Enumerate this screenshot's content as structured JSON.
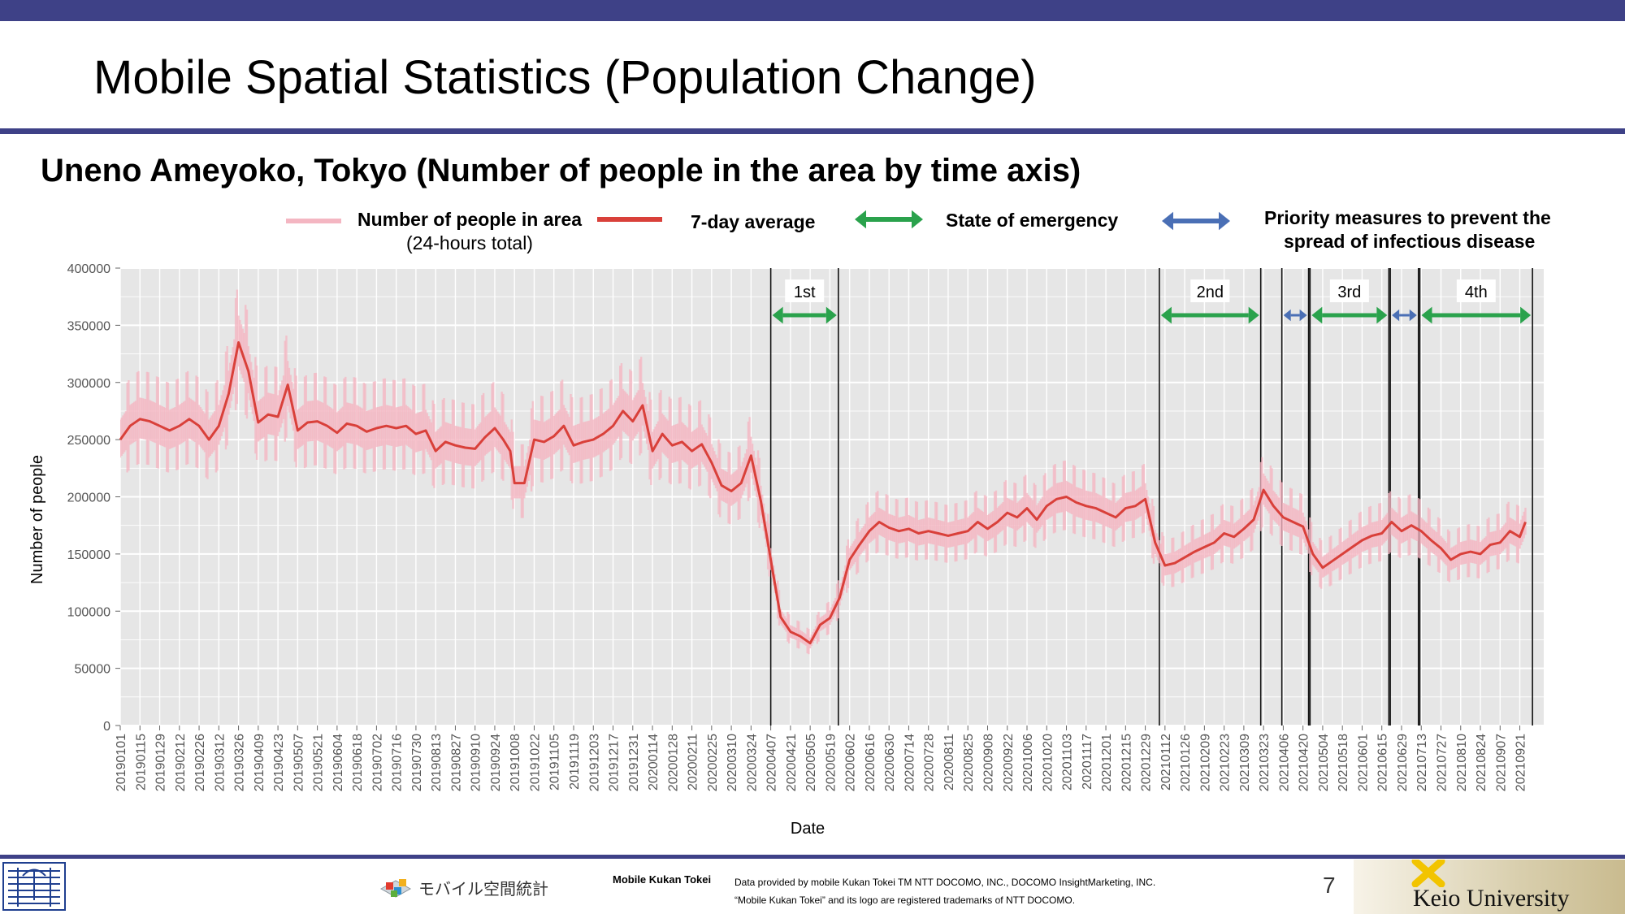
{
  "header": {
    "title": "Mobile Spatial Statistics (Population Change)"
  },
  "subtitle": "Uneno Ameyoko, Tokyo (Number of people in the area by time axis)",
  "legend": {
    "daily_line1": "Number of people in area",
    "daily_line2": "(24-hours total)",
    "avg": "7-day average",
    "emergency": "State of emergency",
    "priority_line1": "Priority measures to prevent the",
    "priority_line2": "spread of infectious disease"
  },
  "colors": {
    "header_bar": "#3e4187",
    "daily": "#f4b6c2",
    "avg": "#d9403a",
    "emergency": "#2aa24c",
    "priority": "#4a6fb5",
    "panel": "#e6e6e6"
  },
  "footer": {
    "mk_name": "Mobile Kukan Tokei",
    "credit_line1": "Data provided by mobile Kukan Tokei TM NTT DOCOMO, INC., DOCOMO InsightMarketing, INC.",
    "credit_line2": "“Mobile Kukan Tokei” and its logo are registered trademarks of NTT DOCOMO.",
    "mk_logo_text": "モバイル空間統計",
    "page": "7",
    "university": "Keio University"
  },
  "chart_data": {
    "type": "line",
    "xlabel": "Date",
    "ylabel": "Number of people",
    "ylim": [
      0,
      400000
    ],
    "y_ticks": [
      0,
      50000,
      100000,
      150000,
      200000,
      250000,
      300000,
      350000,
      400000
    ],
    "x_range": [
      "20190101",
      "20211008"
    ],
    "x_ticks": [
      "20190101",
      "20190115",
      "20190129",
      "20190212",
      "20190226",
      "20190312",
      "20190326",
      "20190409",
      "20190423",
      "20190507",
      "20190521",
      "20190604",
      "20190618",
      "20190702",
      "20190716",
      "20190730",
      "20190813",
      "20190827",
      "20190910",
      "20190924",
      "20191008",
      "20191022",
      "20191105",
      "20191119",
      "20191203",
      "20191217",
      "20191231",
      "20200114",
      "20200128",
      "20200211",
      "20200225",
      "20200310",
      "20200324",
      "20200407",
      "20200421",
      "20200505",
      "20200519",
      "20200602",
      "20200616",
      "20200630",
      "20200714",
      "20200728",
      "20200811",
      "20200825",
      "20200908",
      "20200922",
      "20201006",
      "20201020",
      "20201103",
      "20201117",
      "20201201",
      "20201215",
      "20201229",
      "20210112",
      "20210126",
      "20210209",
      "20210223",
      "20210309",
      "20210323",
      "20210406",
      "20210420",
      "20210504",
      "20210518",
      "20210601",
      "20210615",
      "20210629",
      "20210713",
      "20210727",
      "20210810",
      "20210824",
      "20210907",
      "20210921"
    ],
    "grid": true,
    "legend_position": "top",
    "series": [
      {
        "name": "7-day average",
        "points": [
          [
            "20190101",
            250000
          ],
          [
            "20190108",
            262000
          ],
          [
            "20190115",
            268000
          ],
          [
            "20190122",
            266000
          ],
          [
            "20190129",
            262000
          ],
          [
            "20190205",
            258000
          ],
          [
            "20190212",
            262000
          ],
          [
            "20190219",
            268000
          ],
          [
            "20190226",
            262000
          ],
          [
            "20190305",
            250000
          ],
          [
            "20190312",
            262000
          ],
          [
            "20190319",
            290000
          ],
          [
            "20190326",
            335000
          ],
          [
            "20190402",
            310000
          ],
          [
            "20190409",
            265000
          ],
          [
            "20190416",
            272000
          ],
          [
            "20190423",
            270000
          ],
          [
            "20190430",
            298000
          ],
          [
            "20190507",
            258000
          ],
          [
            "20190514",
            265000
          ],
          [
            "20190521",
            266000
          ],
          [
            "20190528",
            262000
          ],
          [
            "20190604",
            256000
          ],
          [
            "20190611",
            264000
          ],
          [
            "20190618",
            262000
          ],
          [
            "20190625",
            257000
          ],
          [
            "20190702",
            260000
          ],
          [
            "20190709",
            262000
          ],
          [
            "20190716",
            260000
          ],
          [
            "20190723",
            262000
          ],
          [
            "20190730",
            255000
          ],
          [
            "20190806",
            258000
          ],
          [
            "20190813",
            240000
          ],
          [
            "20190820",
            248000
          ],
          [
            "20190827",
            245000
          ],
          [
            "20190903",
            243000
          ],
          [
            "20190910",
            242000
          ],
          [
            "20190917",
            252000
          ],
          [
            "20190924",
            260000
          ],
          [
            "20190930",
            250000
          ],
          [
            "20191005",
            240000
          ],
          [
            "20191008",
            212000
          ],
          [
            "20191015",
            212000
          ],
          [
            "20191022",
            250000
          ],
          [
            "20191029",
            248000
          ],
          [
            "20191105",
            253000
          ],
          [
            "20191112",
            262000
          ],
          [
            "20191119",
            245000
          ],
          [
            "20191126",
            248000
          ],
          [
            "20191203",
            250000
          ],
          [
            "20191210",
            255000
          ],
          [
            "20191217",
            262000
          ],
          [
            "20191224",
            275000
          ],
          [
            "20191231",
            266000
          ],
          [
            "20200107",
            280000
          ],
          [
            "20200114",
            240000
          ],
          [
            "20200121",
            255000
          ],
          [
            "20200128",
            245000
          ],
          [
            "20200204",
            248000
          ],
          [
            "20200211",
            240000
          ],
          [
            "20200218",
            246000
          ],
          [
            "20200225",
            230000
          ],
          [
            "20200303",
            210000
          ],
          [
            "20200310",
            205000
          ],
          [
            "20200317",
            212000
          ],
          [
            "20200324",
            236000
          ],
          [
            "20200331",
            196000
          ],
          [
            "20200407",
            145000
          ],
          [
            "20200414",
            95000
          ],
          [
            "20200421",
            82000
          ],
          [
            "20200428",
            78000
          ],
          [
            "20200505",
            72000
          ],
          [
            "20200512",
            88000
          ],
          [
            "20200519",
            94000
          ],
          [
            "20200526",
            112000
          ],
          [
            "20200602",
            145000
          ],
          [
            "20200609",
            158000
          ],
          [
            "20200616",
            170000
          ],
          [
            "20200623",
            178000
          ],
          [
            "20200630",
            173000
          ],
          [
            "20200707",
            170000
          ],
          [
            "20200714",
            172000
          ],
          [
            "20200721",
            168000
          ],
          [
            "20200728",
            170000
          ],
          [
            "20200804",
            168000
          ],
          [
            "20200811",
            166000
          ],
          [
            "20200818",
            168000
          ],
          [
            "20200825",
            170000
          ],
          [
            "20200901",
            178000
          ],
          [
            "20200908",
            172000
          ],
          [
            "20200915",
            178000
          ],
          [
            "20200922",
            186000
          ],
          [
            "20200929",
            182000
          ],
          [
            "20201006",
            190000
          ],
          [
            "20201013",
            180000
          ],
          [
            "20201020",
            192000
          ],
          [
            "20201027",
            198000
          ],
          [
            "20201103",
            200000
          ],
          [
            "20201110",
            195000
          ],
          [
            "20201117",
            192000
          ],
          [
            "20201124",
            190000
          ],
          [
            "20201201",
            186000
          ],
          [
            "20201208",
            182000
          ],
          [
            "20201215",
            190000
          ],
          [
            "20201222",
            192000
          ],
          [
            "20201229",
            198000
          ],
          [
            "20210105",
            160000
          ],
          [
            "20210112",
            140000
          ],
          [
            "20210119",
            142000
          ],
          [
            "20210126",
            147000
          ],
          [
            "20210202",
            152000
          ],
          [
            "20210209",
            156000
          ],
          [
            "20210216",
            160000
          ],
          [
            "20210223",
            168000
          ],
          [
            "20210302",
            165000
          ],
          [
            "20210309",
            172000
          ],
          [
            "20210316",
            180000
          ],
          [
            "20210323",
            206000
          ],
          [
            "20210330",
            192000
          ],
          [
            "20210406",
            182000
          ],
          [
            "20210413",
            178000
          ],
          [
            "20210420",
            174000
          ],
          [
            "20210427",
            150000
          ],
          [
            "20210504",
            138000
          ],
          [
            "20210511",
            144000
          ],
          [
            "20210518",
            150000
          ],
          [
            "20210525",
            156000
          ],
          [
            "20210601",
            162000
          ],
          [
            "20210608",
            166000
          ],
          [
            "20210615",
            168000
          ],
          [
            "20210622",
            178000
          ],
          [
            "20210629",
            170000
          ],
          [
            "20210706",
            175000
          ],
          [
            "20210713",
            170000
          ],
          [
            "20210720",
            162000
          ],
          [
            "20210727",
            155000
          ],
          [
            "20210803",
            145000
          ],
          [
            "20210810",
            150000
          ],
          [
            "20210817",
            152000
          ],
          [
            "20210824",
            150000
          ],
          [
            "20210831",
            158000
          ],
          [
            "20210907",
            160000
          ],
          [
            "20210914",
            170000
          ],
          [
            "20210921",
            165000
          ],
          [
            "20210925",
            178000
          ]
        ]
      }
    ],
    "periods": [
      {
        "label": "1st",
        "type": "emergency",
        "start": "20200407",
        "end": "20200525"
      },
      {
        "label": "2nd",
        "type": "emergency",
        "start": "20210108",
        "end": "20210321"
      },
      {
        "label": "",
        "type": "priority",
        "start": "20210405",
        "end": "20210424"
      },
      {
        "label": "3rd",
        "type": "emergency",
        "start": "20210425",
        "end": "20210620"
      },
      {
        "label": "",
        "type": "priority",
        "start": "20210621",
        "end": "20210711"
      },
      {
        "label": "4th",
        "type": "emergency",
        "start": "20210712",
        "end": "20210930"
      }
    ]
  }
}
